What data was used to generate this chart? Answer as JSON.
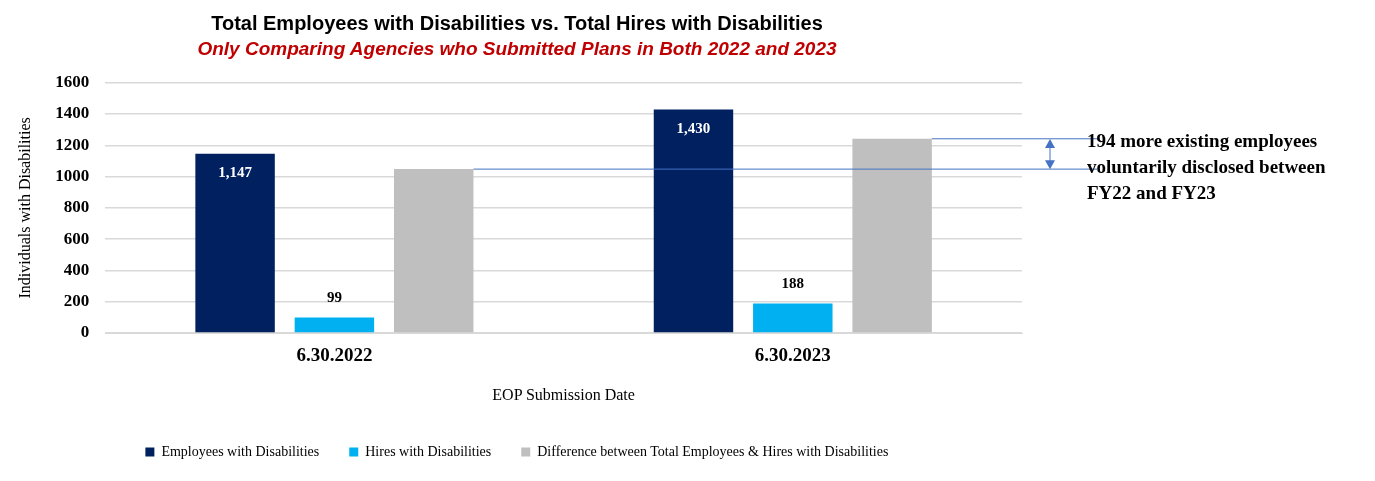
{
  "chart_data": {
    "type": "bar",
    "title": "Total Employees with Disabilities vs. Total Hires with Disabilities",
    "subtitle": "Only Comparing Agencies who Submitted Plans in Both 2022 and 2023",
    "xlabel": "EOP Submission Date",
    "ylabel": "Individuals with Disabilities",
    "categories": [
      "6.30.2022",
      "6.30.2023"
    ],
    "series": [
      {
        "name": "Employees with Disabilities",
        "color": "#002060",
        "values": [
          1147,
          1430
        ],
        "value_labels": [
          "1,147",
          "1,430"
        ]
      },
      {
        "name": "Hires with Disabilities",
        "color": "#00b0f0",
        "values": [
          99,
          188
        ],
        "value_labels": [
          "99",
          "188"
        ]
      },
      {
        "name": "Difference between Total Employees & Hires with Disabilities",
        "color": "#bfbfbf",
        "values": [
          1048,
          1242
        ]
      }
    ],
    "ylim": [
      0,
      1600
    ],
    "yticks": [
      0,
      200,
      400,
      600,
      800,
      1000,
      1200,
      1400,
      1600
    ],
    "grid": "y",
    "legend": "bottom",
    "ref_lines": [
      {
        "axis": "y",
        "value": 1048,
        "color": "#4472c4"
      },
      {
        "axis": "y",
        "value": 1242,
        "color": "#4472c4"
      }
    ],
    "annotations": [
      "194 more existing employees voluntarily disclosed between FY22 and FY23"
    ]
  }
}
